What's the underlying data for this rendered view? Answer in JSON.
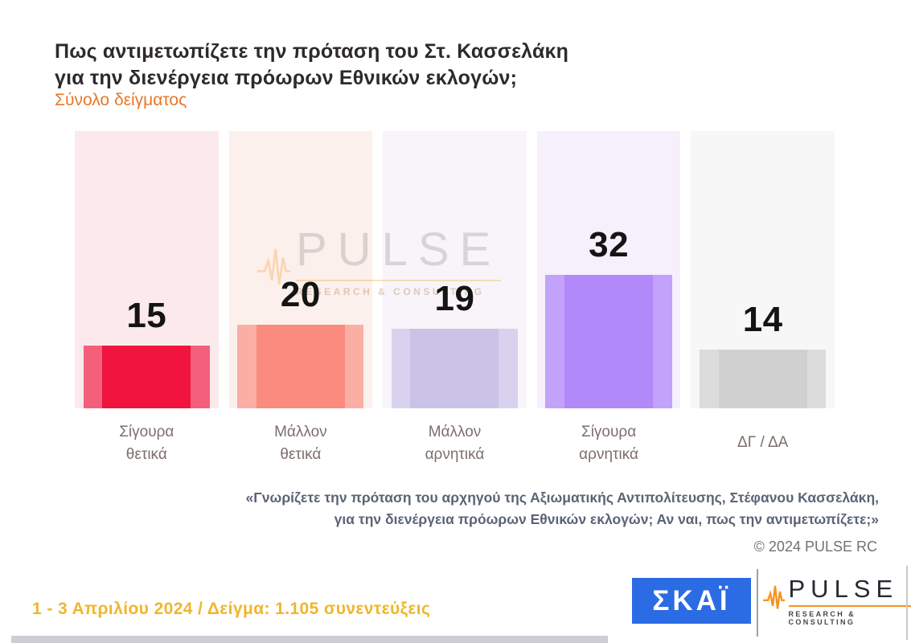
{
  "header": {
    "title_line1": "Πως αντιμετωπίζετε την πρόταση του Στ. Κασσελάκη",
    "title_line2": "για την διενέργεια πρόωρων Εθνικών εκλογών;",
    "subtitle": "Σύνολο δείγματος"
  },
  "chart_data": {
    "type": "bar",
    "title": "Πως αντιμετωπίζετε την πρόταση του Στ. Κασσελάκη για την διενέργεια πρόωρων Εθνικών εκλογών;",
    "subtitle": "Σύνολο δείγματος",
    "categories": [
      "Σίγουρα θετικά",
      "Μάλλον θετικά",
      "Μάλλον αρνητικά",
      "Σίγουρα αρνητικά",
      "ΔΓ / ΔΑ"
    ],
    "category_lines": [
      [
        "Σίγουρα",
        "θετικά"
      ],
      [
        "Μάλλον",
        "θετικά"
      ],
      [
        "Μάλλον",
        "αρνητικά"
      ],
      [
        "Σίγουρα",
        "αρνητικά"
      ],
      [
        "ΔΓ / ΔΑ"
      ]
    ],
    "values": [
      15,
      20,
      19,
      32,
      14
    ],
    "value_labels_shown": true,
    "bar_colors": [
      "#f0143f",
      "#fa8b7e",
      "#cbc2e7",
      "#b189f8",
      "#d0d0d0"
    ],
    "bar_edge_colors": [
      "#f4607b",
      "#fbaea4",
      "#d8d2ee",
      "#c2a2fa",
      "#dcdcdc"
    ],
    "track_colors": [
      "#fbe9ec",
      "#fcf0ed",
      "#f7f5fa",
      "#f5f0fb",
      "#f7f7f8"
    ],
    "xlabel": "",
    "ylabel": "",
    "ylim": [
      0,
      66
    ],
    "grid": false,
    "legend": "none",
    "axes": "none"
  },
  "watermark": {
    "brand": "PULSE",
    "tagline": "RESEARCH & CONSULTING"
  },
  "footnote": {
    "line1": "«Γνωρίζετε την πρόταση του αρχηγού της Αξιωματικής Αντιπολίτευσης, Στέφανου Κασσελάκη,",
    "line2": "για την διενέργεια πρόωρων Εθνικών εκλογών; Αν ναι, πως την αντιμετωπίζετε;»"
  },
  "copyright": "© 2024 PULSE RC",
  "footer": {
    "survey_info": "1 - 3  Απριλίου 2024  /  Δείγμα:  1.105 συνεντεύξεις",
    "skai_logo_text": "ΣΚΑΪ",
    "pulse_logo_text": "PULSE",
    "pulse_logo_tagline": "RESEARCH & CONSULTING"
  },
  "colors": {
    "title_text": "#2e2a2b",
    "subtitle_accent": "#e8772a",
    "value_label": "#141414",
    "category_label": "#7d6f6b",
    "footnote_text": "#5b6375",
    "copyright_text": "#6f7276",
    "survey_info_text": "#efb62c",
    "skai_blue": "#2b6be3",
    "pulse_orange": "#f6921e"
  }
}
